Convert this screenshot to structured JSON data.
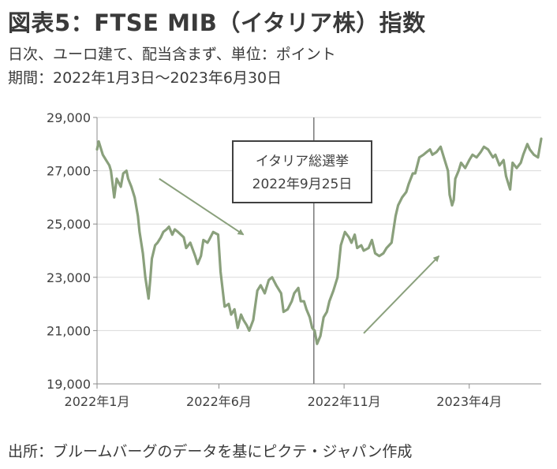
{
  "header": {
    "title": "図表5：FTSE MIB（イタリア株）指数",
    "subtitle1": "日次、ユーロ建て、配当含まず、単位：ポイント",
    "subtitle2": "期間：2022年1月3日～2023年6月30日"
  },
  "footer": {
    "source": "出所：ブルームバーグのデータを基にピクテ・ジャパン作成"
  },
  "colors": {
    "series": "#8aa07c",
    "grid": "#d9d9d9",
    "axis": "#8c8c8c",
    "event_line": "#7f7f7f"
  },
  "chart_data": {
    "type": "line",
    "title": "",
    "xlabel": "",
    "ylabel": "",
    "ylim": [
      19000,
      29000
    ],
    "yticks": [
      19000,
      21000,
      23000,
      25000,
      27000,
      29000
    ],
    "ytick_labels": [
      "19,000",
      "21,000",
      "23,000",
      "25,000",
      "27,000",
      "29,000"
    ],
    "xlim": [
      "2022-01-03",
      "2023-06-30"
    ],
    "xticks": [
      "2022-01-03",
      "2022-06-01",
      "2022-11-01",
      "2023-04-03"
    ],
    "xtick_labels": [
      "2022年1月",
      "2022年6月",
      "2022年11月",
      "2023年4月"
    ],
    "grid": true,
    "event": {
      "date": "2022-09-25",
      "label_line1": "イタリア総選挙",
      "label_line2": "2022年9月25日"
    },
    "series": [
      {
        "x": [
          "2022-01-03",
          "2022-01-05",
          "2022-01-10",
          "2022-01-14",
          "2022-01-18",
          "2022-01-20",
          "2022-01-24",
          "2022-01-27",
          "2022-02-01",
          "2022-02-04",
          "2022-02-08",
          "2022-02-10",
          "2022-02-14",
          "2022-02-18",
          "2022-02-22",
          "2022-02-24",
          "2022-02-28",
          "2022-03-03",
          "2022-03-07",
          "2022-03-09",
          "2022-03-11",
          "2022-03-15",
          "2022-03-18",
          "2022-03-22",
          "2022-03-25",
          "2022-03-29",
          "2022-04-01",
          "2022-04-05",
          "2022-04-08",
          "2022-04-12",
          "2022-04-19",
          "2022-04-22",
          "2022-04-27",
          "2022-05-03",
          "2022-05-06",
          "2022-05-10",
          "2022-05-13",
          "2022-05-18",
          "2022-05-20",
          "2022-05-25",
          "2022-05-31",
          "2022-06-03",
          "2022-06-08",
          "2022-06-13",
          "2022-06-16",
          "2022-06-20",
          "2022-06-24",
          "2022-06-28",
          "2022-07-01",
          "2022-07-05",
          "2022-07-08",
          "2022-07-13",
          "2022-07-18",
          "2022-07-22",
          "2022-07-27",
          "2022-08-01",
          "2022-08-05",
          "2022-08-10",
          "2022-08-16",
          "2022-08-19",
          "2022-08-24",
          "2022-08-29",
          "2022-09-01",
          "2022-09-06",
          "2022-09-09",
          "2022-09-13",
          "2022-09-16",
          "2022-09-20",
          "2022-09-23",
          "2022-09-26",
          "2022-09-29",
          "2022-10-03",
          "2022-10-07",
          "2022-10-11",
          "2022-10-14",
          "2022-10-19",
          "2022-10-24",
          "2022-10-28",
          "2022-11-02",
          "2022-11-07",
          "2022-11-10",
          "2022-11-14",
          "2022-11-17",
          "2022-11-22",
          "2022-11-25",
          "2022-12-01",
          "2022-12-05",
          "2022-12-09",
          "2022-12-14",
          "2022-12-19",
          "2022-12-23",
          "2022-12-29",
          "2023-01-03",
          "2023-01-06",
          "2023-01-11",
          "2023-01-16",
          "2023-01-19",
          "2023-01-24",
          "2023-01-27",
          "2023-02-01",
          "2023-02-06",
          "2023-02-10",
          "2023-02-14",
          "2023-02-17",
          "2023-02-22",
          "2023-02-27",
          "2023-03-03",
          "2023-03-08",
          "2023-03-10",
          "2023-03-13",
          "2023-03-15",
          "2023-03-17",
          "2023-03-21",
          "2023-03-24",
          "2023-03-29",
          "2023-04-03",
          "2023-04-07",
          "2023-04-12",
          "2023-04-17",
          "2023-04-21",
          "2023-04-26",
          "2023-05-02",
          "2023-05-05",
          "2023-05-10",
          "2023-05-15",
          "2023-05-18",
          "2023-05-23",
          "2023-05-26",
          "2023-05-31",
          "2023-06-05",
          "2023-06-08",
          "2023-06-13",
          "2023-06-16",
          "2023-06-21",
          "2023-06-26",
          "2023-06-30"
        ],
        "values": [
          27800,
          28100,
          27600,
          27400,
          27200,
          27000,
          26000,
          26700,
          26400,
          26900,
          27000,
          26700,
          26400,
          26000,
          25300,
          24700,
          23900,
          23000,
          22200,
          22900,
          23700,
          24200,
          24300,
          24500,
          24700,
          24800,
          24900,
          24600,
          24800,
          24700,
          24500,
          24100,
          24300,
          23800,
          23500,
          23800,
          24400,
          24300,
          24400,
          24700,
          24600,
          23200,
          21900,
          22000,
          21600,
          21800,
          21100,
          21600,
          21400,
          21200,
          21000,
          21400,
          22500,
          22700,
          22400,
          22900,
          23000,
          22700,
          22400,
          21700,
          21800,
          22100,
          22400,
          22600,
          22100,
          22100,
          21800,
          21500,
          21100,
          21000,
          20500,
          20800,
          21500,
          21700,
          22100,
          22500,
          23000,
          24200,
          24700,
          24500,
          24300,
          24600,
          24100,
          24200,
          24000,
          24100,
          24400,
          23900,
          23800,
          23900,
          24100,
          24300,
          25300,
          25700,
          26000,
          26200,
          26500,
          26900,
          26900,
          27500,
          27600,
          27700,
          27800,
          27600,
          27700,
          27900,
          27500,
          27000,
          26100,
          25700,
          25900,
          26700,
          27000,
          27300,
          27100,
          27400,
          27600,
          27500,
          27700,
          27900,
          27800,
          27500,
          27600,
          27200,
          27400,
          26800,
          26300,
          27300,
          27100,
          27300,
          27600,
          28000,
          27800,
          27600,
          27500,
          28200
        ]
      }
    ],
    "annotations": [
      {
        "type": "arrow",
        "from": [
          "2022-03-20",
          26700
        ],
        "to": [
          "2022-07-01",
          24600
        ]
      },
      {
        "type": "arrow",
        "from": [
          "2022-11-25",
          20900
        ],
        "to": [
          "2023-02-25",
          23800
        ]
      }
    ]
  }
}
